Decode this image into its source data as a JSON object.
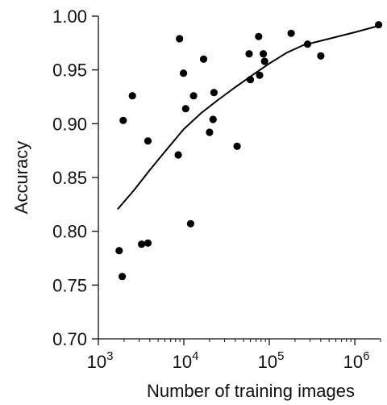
{
  "chart_data": {
    "type": "scatter",
    "title": "",
    "xlabel": "Number of training images",
    "ylabel": "Accuracy",
    "xscale": "log",
    "xlim": [
      1000,
      2000000
    ],
    "ylim": [
      0.7,
      1.0
    ],
    "grid": false,
    "legend": "none",
    "colors": {
      "points": "#000000",
      "curve": "#000000",
      "axes": "#111111",
      "text": "#111111"
    },
    "x_ticks": [
      {
        "value": 1000,
        "base": "10",
        "exponent": "3"
      },
      {
        "value": 10000,
        "base": "10",
        "exponent": "4"
      },
      {
        "value": 100000,
        "base": "10",
        "exponent": "5"
      },
      {
        "value": 1000000,
        "base": "10",
        "exponent": "6"
      }
    ],
    "y_ticks": [
      {
        "value": 0.7,
        "label": "0.70"
      },
      {
        "value": 0.75,
        "label": "0.75"
      },
      {
        "value": 0.8,
        "label": "0.80"
      },
      {
        "value": 0.85,
        "label": "0.85"
      },
      {
        "value": 0.9,
        "label": "0.90"
      },
      {
        "value": 0.95,
        "label": "0.95"
      },
      {
        "value": 1.0,
        "label": "1.00"
      }
    ],
    "points": [
      {
        "x": 1750,
        "y": 0.782
      },
      {
        "x": 1900,
        "y": 0.758
      },
      {
        "x": 1950,
        "y": 0.903
      },
      {
        "x": 2500,
        "y": 0.926
      },
      {
        "x": 3200,
        "y": 0.788
      },
      {
        "x": 3800,
        "y": 0.789
      },
      {
        "x": 3800,
        "y": 0.884
      },
      {
        "x": 8600,
        "y": 0.871
      },
      {
        "x": 8900,
        "y": 0.979
      },
      {
        "x": 9900,
        "y": 0.947
      },
      {
        "x": 10500,
        "y": 0.914
      },
      {
        "x": 12000,
        "y": 0.807
      },
      {
        "x": 13000,
        "y": 0.926
      },
      {
        "x": 17000,
        "y": 0.96
      },
      {
        "x": 20000,
        "y": 0.892
      },
      {
        "x": 22000,
        "y": 0.904
      },
      {
        "x": 22500,
        "y": 0.929
      },
      {
        "x": 42000,
        "y": 0.879
      },
      {
        "x": 58000,
        "y": 0.965
      },
      {
        "x": 60000,
        "y": 0.941
      },
      {
        "x": 75000,
        "y": 0.981
      },
      {
        "x": 77000,
        "y": 0.945
      },
      {
        "x": 85000,
        "y": 0.965
      },
      {
        "x": 88000,
        "y": 0.958
      },
      {
        "x": 180000,
        "y": 0.984
      },
      {
        "x": 280000,
        "y": 0.974
      },
      {
        "x": 400000,
        "y": 0.963
      },
      {
        "x": 1900000,
        "y": 0.992
      }
    ],
    "trend_line": [
      {
        "x": 1700,
        "y": 0.821
      },
      {
        "x": 2600,
        "y": 0.838
      },
      {
        "x": 4000,
        "y": 0.857
      },
      {
        "x": 6300,
        "y": 0.876
      },
      {
        "x": 10000,
        "y": 0.895
      },
      {
        "x": 16000,
        "y": 0.91
      },
      {
        "x": 25000,
        "y": 0.922
      },
      {
        "x": 40000,
        "y": 0.934
      },
      {
        "x": 63000,
        "y": 0.945
      },
      {
        "x": 100000,
        "y": 0.956
      },
      {
        "x": 160000,
        "y": 0.966
      },
      {
        "x": 250000,
        "y": 0.973
      },
      {
        "x": 500000,
        "y": 0.979
      },
      {
        "x": 1000000,
        "y": 0.985
      },
      {
        "x": 1900000,
        "y": 0.991
      }
    ]
  }
}
